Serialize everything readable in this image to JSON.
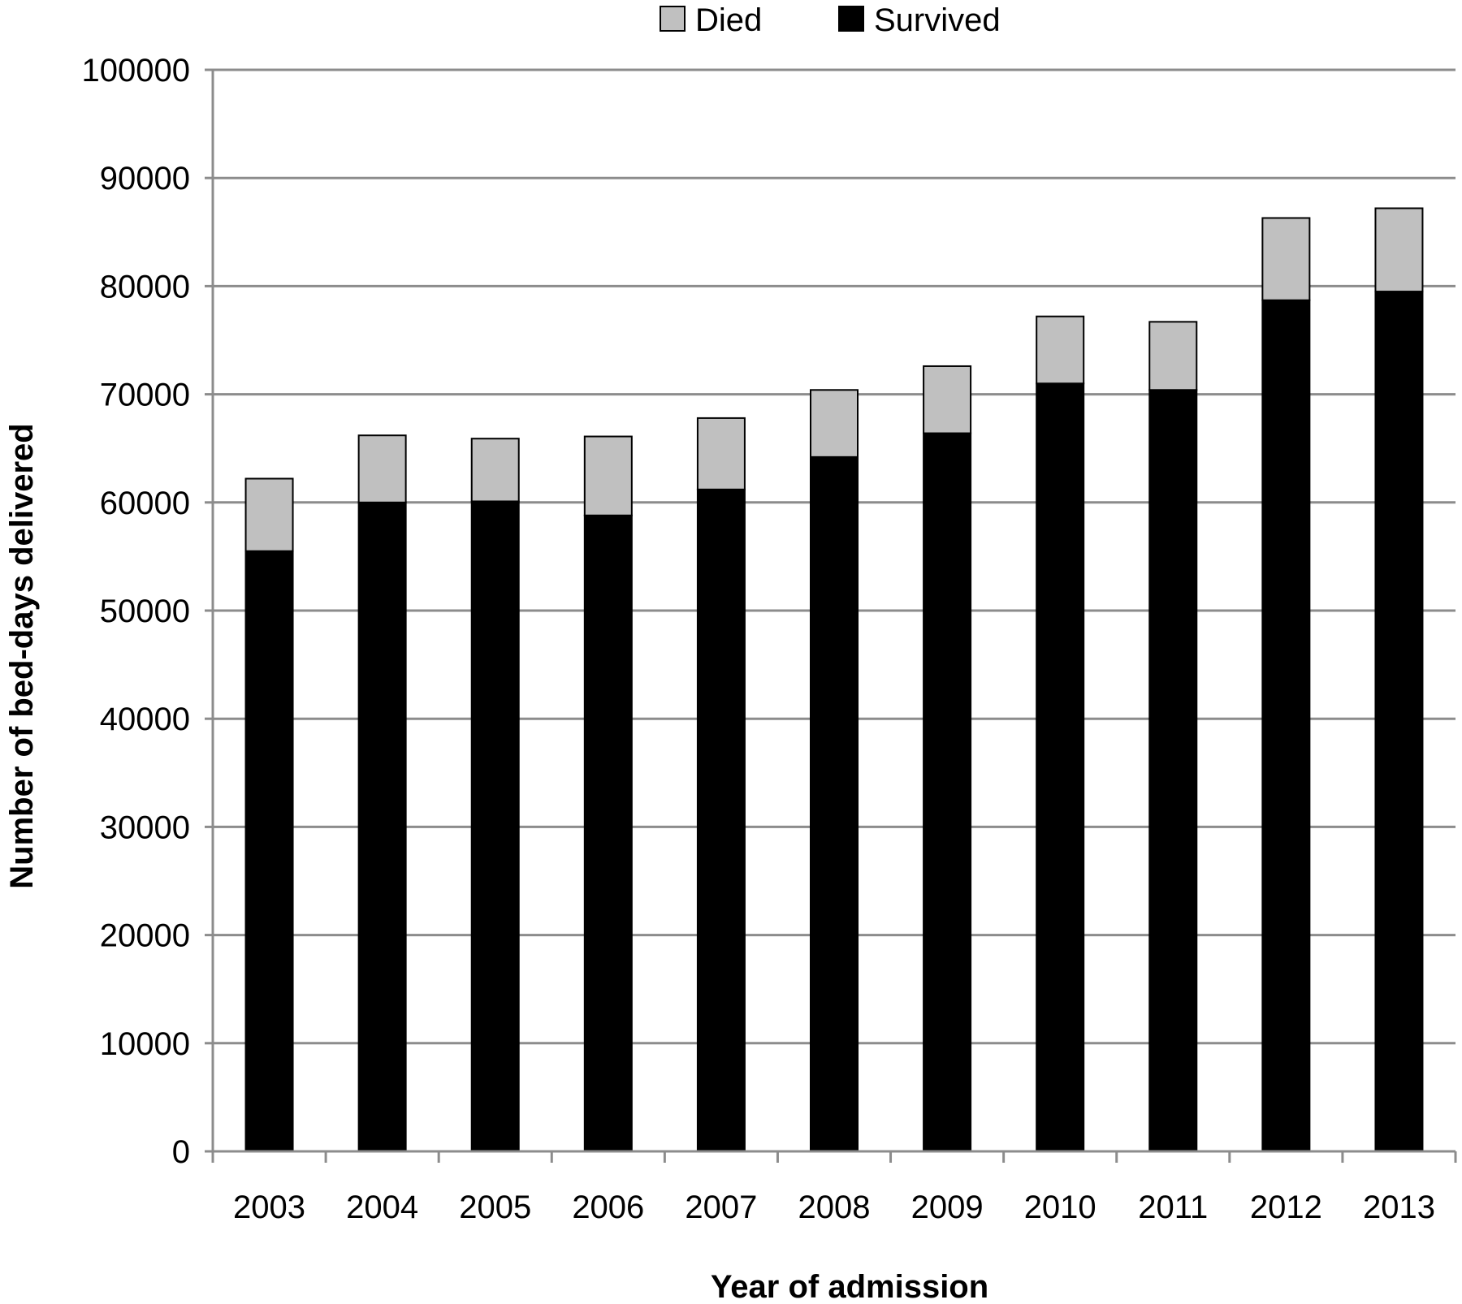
{
  "chart_data": {
    "type": "bar",
    "stacked": true,
    "categories": [
      "2003",
      "2004",
      "2005",
      "2006",
      "2007",
      "2008",
      "2009",
      "2010",
      "2011",
      "2012",
      "2013"
    ],
    "series": [
      {
        "name": "Survived",
        "values": [
          55500,
          60000,
          60100,
          58800,
          61200,
          64200,
          66400,
          71000,
          70400,
          78700,
          79500
        ],
        "color": "#000000"
      },
      {
        "name": "Died",
        "values": [
          6700,
          6200,
          5800,
          7300,
          6600,
          6200,
          6200,
          6200,
          6300,
          7600,
          7700
        ],
        "color": "#c0c0c0"
      }
    ],
    "legend_order": [
      "Died",
      "Survived"
    ],
    "xlabel": "Year of admission",
    "ylabel": "Number of bed-days delivered",
    "ylim": [
      0,
      100000
    ],
    "yticks": [
      "0",
      "10000",
      "20000",
      "30000",
      "40000",
      "50000",
      "60000",
      "70000",
      "80000",
      "90000",
      "100000"
    ],
    "grid": true,
    "legend_position": "top-center"
  }
}
